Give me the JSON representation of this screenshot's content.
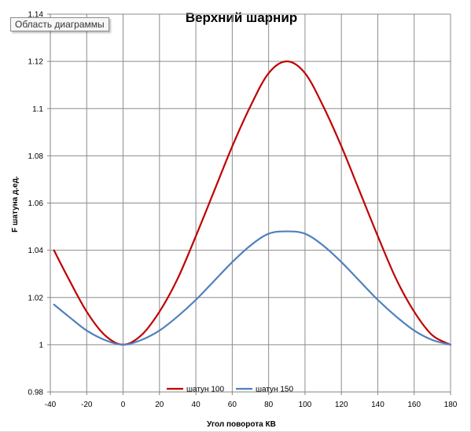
{
  "tooltip": "Область диаграммы",
  "chart_data": {
    "type": "line",
    "title": "Верхний шарнир",
    "xlabel": "Угол поворота  КВ",
    "ylabel": "F шатуна д.ед.",
    "xlim": [
      -40,
      180
    ],
    "ylim": [
      0.98,
      1.14
    ],
    "xticks": [
      -40,
      -20,
      0,
      20,
      40,
      60,
      80,
      100,
      120,
      140,
      160,
      180
    ],
    "yticks": [
      "0.98",
      "1",
      "1.02",
      "1.04",
      "1.06",
      "1.08",
      "1.1",
      "1.12",
      "1.14"
    ],
    "grid": true,
    "legend_position": "bottom",
    "x": [
      -38,
      -30,
      -20,
      -10,
      0,
      10,
      20,
      30,
      40,
      50,
      60,
      70,
      80,
      90,
      100,
      110,
      120,
      130,
      140,
      150,
      160,
      170,
      180
    ],
    "series": [
      {
        "name": "шатун 100",
        "color": "#c00000",
        "values": [
          1.04,
          1.028,
          1.014,
          1.004,
          1.0,
          1.004,
          1.014,
          1.028,
          1.046,
          1.065,
          1.084,
          1.101,
          1.115,
          1.12,
          1.115,
          1.101,
          1.084,
          1.065,
          1.046,
          1.028,
          1.014,
          1.004,
          1.0
        ]
      },
      {
        "name": "шатун 150",
        "color": "#4f81bd",
        "values": [
          1.017,
          1.012,
          1.006,
          1.002,
          1.0,
          1.002,
          1.006,
          1.012,
          1.019,
          1.027,
          1.035,
          1.042,
          1.047,
          1.048,
          1.047,
          1.042,
          1.035,
          1.027,
          1.019,
          1.012,
          1.006,
          1.002,
          1.0
        ]
      }
    ]
  }
}
